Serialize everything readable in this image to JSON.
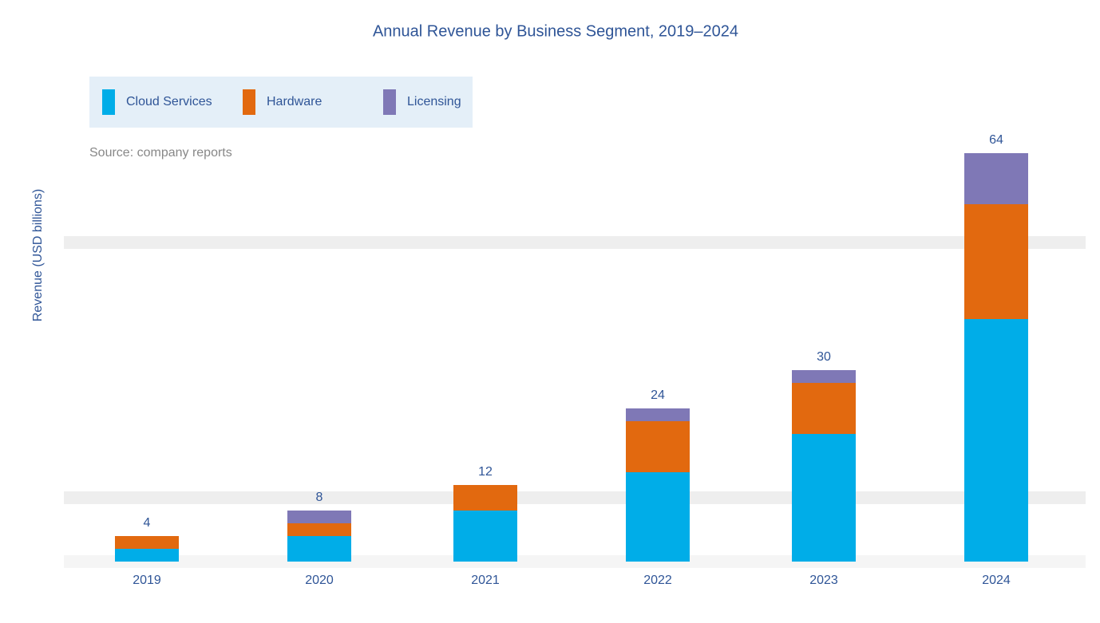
{
  "chart_data": {
    "type": "stacked-bar",
    "title": "Annual Revenue by Business Segment, 2019–2024",
    "y_label": "Revenue (USD billions)",
    "note": "Source: company reports",
    "categories": [
      "2019",
      "2020",
      "2021",
      "2022",
      "2023",
      "2024"
    ],
    "series": [
      {
        "name": "Cloud Services",
        "color": "#00ade8",
        "values": [
          2,
          4,
          8,
          14,
          20,
          38
        ]
      },
      {
        "name": "Hardware",
        "color": "#e2690f",
        "values": [
          2,
          2,
          4,
          8,
          8,
          18
        ]
      },
      {
        "name": "Licensing",
        "color": "#7f78b6",
        "values": [
          0,
          2,
          0,
          2,
          2,
          8
        ]
      }
    ],
    "totals": [
      4,
      8,
      12,
      24,
      30,
      64
    ],
    "ylim": [
      0,
      80
    ],
    "yticks": [
      0,
      10,
      50
    ],
    "grid": true,
    "legend": "top-left"
  }
}
